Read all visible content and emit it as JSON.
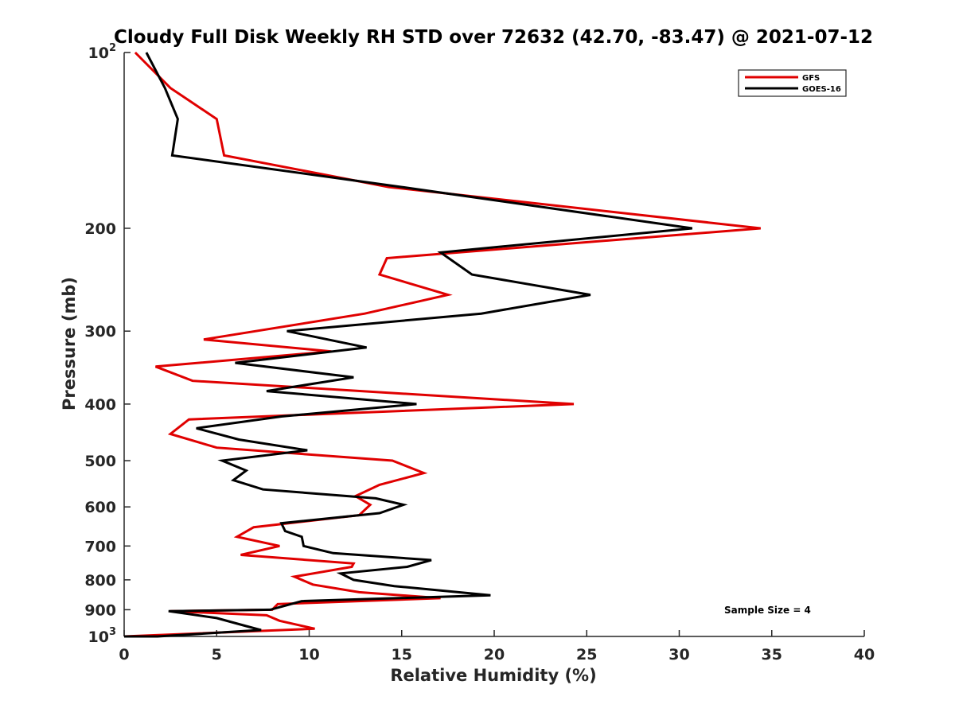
{
  "chart_data": {
    "type": "line",
    "title": "Cloudy Full Disk Weekly RH STD over 72632 (42.70, -83.47) @ 2021-07-12",
    "xlabel": "Relative Humidity (%)",
    "ylabel": "Pressure (mb)",
    "xlim": [
      0,
      40
    ],
    "ylim": [
      100,
      1000
    ],
    "y_scale": "log",
    "y_reversed": true,
    "grid": false,
    "legend_position": "top-right",
    "x_ticks": [
      0,
      5,
      10,
      15,
      20,
      25,
      30,
      35,
      40
    ],
    "x_tick_labels": [
      "0",
      "5",
      "10",
      "15",
      "20",
      "25",
      "30",
      "35",
      "40"
    ],
    "y_ticks": [
      100,
      200,
      300,
      400,
      500,
      600,
      700,
      800,
      900,
      1000
    ],
    "y_tick_labels": [
      {
        "base": "10",
        "exp": "2"
      },
      {
        "base": "200",
        "exp": ""
      },
      {
        "base": "300",
        "exp": ""
      },
      {
        "base": "400",
        "exp": ""
      },
      {
        "base": "500",
        "exp": ""
      },
      {
        "base": "600",
        "exp": ""
      },
      {
        "base": "700",
        "exp": ""
      },
      {
        "base": "800",
        "exp": ""
      },
      {
        "base": "900",
        "exp": ""
      },
      {
        "base": "10",
        "exp": "3"
      }
    ],
    "annotation": "Sample Size = 4",
    "series": [
      {
        "name": "GFS",
        "color": "#e00000",
        "points": [
          [
            0.6,
            100
          ],
          [
            2.5,
            115
          ],
          [
            5.0,
            130
          ],
          [
            5.4,
            150
          ],
          [
            14.3,
            170
          ],
          [
            34.4,
            200
          ],
          [
            14.2,
            225
          ],
          [
            13.8,
            240
          ],
          [
            17.5,
            260
          ],
          [
            13.0,
            280
          ],
          [
            4.3,
            310
          ],
          [
            11.2,
            325
          ],
          [
            1.7,
            345
          ],
          [
            3.7,
            365
          ],
          [
            24.3,
            400
          ],
          [
            3.5,
            425
          ],
          [
            2.5,
            450
          ],
          [
            5.0,
            475
          ],
          [
            14.5,
            500
          ],
          [
            16.2,
            525
          ],
          [
            13.8,
            550
          ],
          [
            12.5,
            575
          ],
          [
            13.3,
            595
          ],
          [
            12.7,
            620
          ],
          [
            7.0,
            650
          ],
          [
            6.1,
            675
          ],
          [
            8.4,
            700
          ],
          [
            6.3,
            725
          ],
          [
            12.4,
            750
          ],
          [
            12.3,
            760
          ],
          [
            9.2,
            790
          ],
          [
            10.2,
            815
          ],
          [
            12.7,
            840
          ],
          [
            17.1,
            860
          ],
          [
            8.3,
            880
          ],
          [
            8.0,
            900
          ],
          [
            2.5,
            905
          ],
          [
            7.7,
            920
          ],
          [
            8.4,
            940
          ],
          [
            10.3,
            970
          ],
          [
            0.0,
            1000
          ]
        ]
      },
      {
        "name": "GOES-16",
        "color": "#000000",
        "points": [
          [
            1.2,
            100
          ],
          [
            2.2,
            115
          ],
          [
            2.9,
            130
          ],
          [
            2.6,
            150
          ],
          [
            15.0,
            170
          ],
          [
            30.7,
            200
          ],
          [
            17.1,
            220
          ],
          [
            18.8,
            240
          ],
          [
            25.2,
            260
          ],
          [
            19.3,
            280
          ],
          [
            8.8,
            300
          ],
          [
            13.1,
            320
          ],
          [
            6.0,
            340
          ],
          [
            12.4,
            360
          ],
          [
            7.7,
            380
          ],
          [
            15.8,
            400
          ],
          [
            8.5,
            420
          ],
          [
            3.9,
            440
          ],
          [
            6.2,
            460
          ],
          [
            9.9,
            480
          ],
          [
            5.3,
            500
          ],
          [
            6.6,
            520
          ],
          [
            5.9,
            540
          ],
          [
            7.5,
            560
          ],
          [
            13.6,
            580
          ],
          [
            15.1,
            595
          ],
          [
            13.8,
            615
          ],
          [
            8.5,
            640
          ],
          [
            8.7,
            660
          ],
          [
            9.6,
            675
          ],
          [
            9.7,
            700
          ],
          [
            11.3,
            720
          ],
          [
            16.6,
            740
          ],
          [
            15.3,
            760
          ],
          [
            11.7,
            780
          ],
          [
            12.4,
            800
          ],
          [
            14.6,
            820
          ],
          [
            19.8,
            850
          ],
          [
            9.6,
            870
          ],
          [
            7.9,
            900
          ],
          [
            2.4,
            905
          ],
          [
            5.0,
            930
          ],
          [
            6.6,
            960
          ],
          [
            7.4,
            975
          ],
          [
            1.8,
            1000
          ],
          [
            0.0,
            1000
          ]
        ]
      }
    ]
  }
}
